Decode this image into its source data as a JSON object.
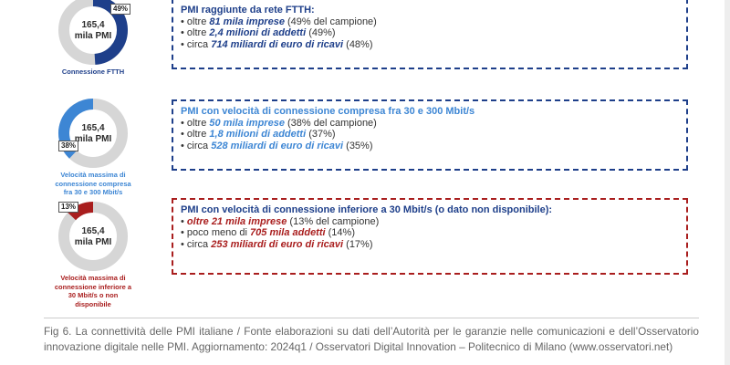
{
  "colors": {
    "blue_dark": "#1e3f8a",
    "blue_mid": "#3d86d4",
    "red_dark": "#a91e1e",
    "grey": "#d6d6d6",
    "text": "#333333"
  },
  "chart_data": [
    {
      "type": "pie",
      "center_label": "165,4 mila PMI",
      "label": "Connessione FTTH",
      "highlight_percent": 49,
      "percent_label": "49%",
      "color": "#1e3f8a"
    },
    {
      "type": "pie",
      "center_label": "165,4 mila PMI",
      "label": "Velocità massima di connessione compresa fra 30 e 300 Mbit/s",
      "highlight_percent": 38,
      "percent_label": "38%",
      "color": "#3d86d4"
    },
    {
      "type": "pie",
      "center_label": "165,4 mila PMI",
      "label": "Velocità massima di connessione inferiore a 30 Mbit/s o non disponibile",
      "highlight_percent": 13,
      "percent_label": "13%",
      "color": "#a91e1e"
    }
  ],
  "boxes": [
    {
      "title": "PMI raggiunte da rete FTTH:",
      "items": [
        {
          "pre": "oltre ",
          "em": "81 mila imprese",
          "post": " (49% del campione)"
        },
        {
          "pre": "oltre ",
          "em": "2,4 milioni di addetti",
          "post": " (49%)"
        },
        {
          "pre": "circa ",
          "em": "714 miliardi di euro di ricavi",
          "post": " (48%)"
        }
      ]
    },
    {
      "title": "PMI con velocità di connessione compresa fra 30 e 300 Mbit/s",
      "items": [
        {
          "pre": "oltre ",
          "em": "50 mila imprese",
          "post": " (38% del campione)"
        },
        {
          "pre": "oltre ",
          "em": "1,8 milioni di addetti",
          "post": " (37%)"
        },
        {
          "pre": "circa ",
          "em": "528 miliardi di euro di ricavi",
          "post": " (35%)"
        }
      ]
    },
    {
      "title": "PMI con velocità di connessione inferiore a 30 Mbit/s (o dato non disponibile):",
      "items": [
        {
          "pre": "",
          "em": "oltre 21 mila imprese",
          "post": " (13% del campione)"
        },
        {
          "pre": "poco meno di ",
          "em": "705 mila addetti",
          "post": " (14%)"
        },
        {
          "pre": "circa ",
          "em": "253 miliardi di euro di ricavi",
          "post": " (17%)"
        }
      ]
    }
  ],
  "caption": "Fig 6. La connettività delle PMI italiane / Fonte elaborazioni su dati dell’Autorità per le garanzie nelle comunicazioni e dell’Osservatorio innovazione digitale nelle PMI. Aggiornamento: 2024q1 / Osservatori Digital Innovation – Politecnico di Milano (www.osservatori.net)"
}
